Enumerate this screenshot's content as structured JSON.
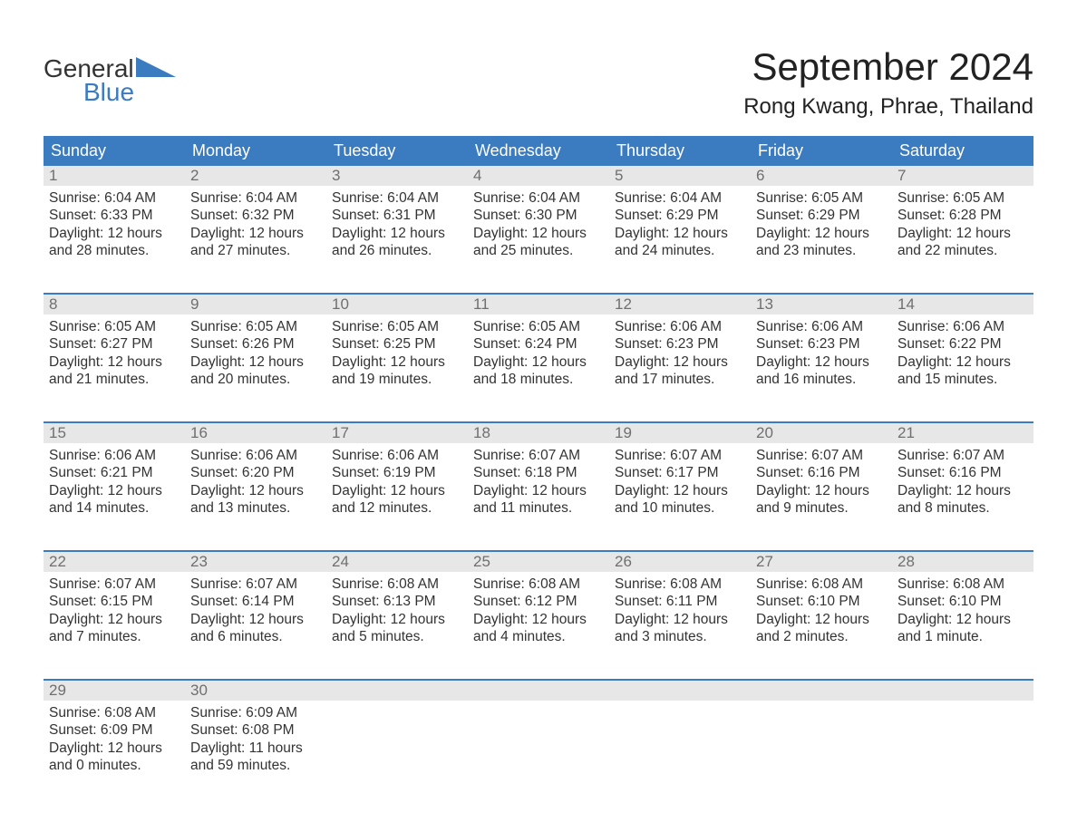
{
  "logo": {
    "line1": "General",
    "line2": "Blue"
  },
  "title": "September 2024",
  "location": "Rong Kwang, Phrae, Thailand",
  "colors": {
    "header_bg": "#3b7bbf",
    "header_text": "#ffffff",
    "daynum_bg": "#e7e7e7",
    "daynum_text": "#6f6f6f",
    "body_text": "#333333",
    "accent": "#3b7bbf",
    "page_bg": "#ffffff"
  },
  "typography": {
    "title_fontsize": 42,
    "location_fontsize": 24,
    "dow_fontsize": 18,
    "daynum_fontsize": 17,
    "body_fontsize": 15.5,
    "font_family": "Arial"
  },
  "dow": [
    "Sunday",
    "Monday",
    "Tuesday",
    "Wednesday",
    "Thursday",
    "Friday",
    "Saturday"
  ],
  "weeks": [
    [
      {
        "n": "1",
        "sunrise": "Sunrise: 6:04 AM",
        "sunset": "Sunset: 6:33 PM",
        "d1": "Daylight: 12 hours",
        "d2": "and 28 minutes."
      },
      {
        "n": "2",
        "sunrise": "Sunrise: 6:04 AM",
        "sunset": "Sunset: 6:32 PM",
        "d1": "Daylight: 12 hours",
        "d2": "and 27 minutes."
      },
      {
        "n": "3",
        "sunrise": "Sunrise: 6:04 AM",
        "sunset": "Sunset: 6:31 PM",
        "d1": "Daylight: 12 hours",
        "d2": "and 26 minutes."
      },
      {
        "n": "4",
        "sunrise": "Sunrise: 6:04 AM",
        "sunset": "Sunset: 6:30 PM",
        "d1": "Daylight: 12 hours",
        "d2": "and 25 minutes."
      },
      {
        "n": "5",
        "sunrise": "Sunrise: 6:04 AM",
        "sunset": "Sunset: 6:29 PM",
        "d1": "Daylight: 12 hours",
        "d2": "and 24 minutes."
      },
      {
        "n": "6",
        "sunrise": "Sunrise: 6:05 AM",
        "sunset": "Sunset: 6:29 PM",
        "d1": "Daylight: 12 hours",
        "d2": "and 23 minutes."
      },
      {
        "n": "7",
        "sunrise": "Sunrise: 6:05 AM",
        "sunset": "Sunset: 6:28 PM",
        "d1": "Daylight: 12 hours",
        "d2": "and 22 minutes."
      }
    ],
    [
      {
        "n": "8",
        "sunrise": "Sunrise: 6:05 AM",
        "sunset": "Sunset: 6:27 PM",
        "d1": "Daylight: 12 hours",
        "d2": "and 21 minutes."
      },
      {
        "n": "9",
        "sunrise": "Sunrise: 6:05 AM",
        "sunset": "Sunset: 6:26 PM",
        "d1": "Daylight: 12 hours",
        "d2": "and 20 minutes."
      },
      {
        "n": "10",
        "sunrise": "Sunrise: 6:05 AM",
        "sunset": "Sunset: 6:25 PM",
        "d1": "Daylight: 12 hours",
        "d2": "and 19 minutes."
      },
      {
        "n": "11",
        "sunrise": "Sunrise: 6:05 AM",
        "sunset": "Sunset: 6:24 PM",
        "d1": "Daylight: 12 hours",
        "d2": "and 18 minutes."
      },
      {
        "n": "12",
        "sunrise": "Sunrise: 6:06 AM",
        "sunset": "Sunset: 6:23 PM",
        "d1": "Daylight: 12 hours",
        "d2": "and 17 minutes."
      },
      {
        "n": "13",
        "sunrise": "Sunrise: 6:06 AM",
        "sunset": "Sunset: 6:23 PM",
        "d1": "Daylight: 12 hours",
        "d2": "and 16 minutes."
      },
      {
        "n": "14",
        "sunrise": "Sunrise: 6:06 AM",
        "sunset": "Sunset: 6:22 PM",
        "d1": "Daylight: 12 hours",
        "d2": "and 15 minutes."
      }
    ],
    [
      {
        "n": "15",
        "sunrise": "Sunrise: 6:06 AM",
        "sunset": "Sunset: 6:21 PM",
        "d1": "Daylight: 12 hours",
        "d2": "and 14 minutes."
      },
      {
        "n": "16",
        "sunrise": "Sunrise: 6:06 AM",
        "sunset": "Sunset: 6:20 PM",
        "d1": "Daylight: 12 hours",
        "d2": "and 13 minutes."
      },
      {
        "n": "17",
        "sunrise": "Sunrise: 6:06 AM",
        "sunset": "Sunset: 6:19 PM",
        "d1": "Daylight: 12 hours",
        "d2": "and 12 minutes."
      },
      {
        "n": "18",
        "sunrise": "Sunrise: 6:07 AM",
        "sunset": "Sunset: 6:18 PM",
        "d1": "Daylight: 12 hours",
        "d2": "and 11 minutes."
      },
      {
        "n": "19",
        "sunrise": "Sunrise: 6:07 AM",
        "sunset": "Sunset: 6:17 PM",
        "d1": "Daylight: 12 hours",
        "d2": "and 10 minutes."
      },
      {
        "n": "20",
        "sunrise": "Sunrise: 6:07 AM",
        "sunset": "Sunset: 6:16 PM",
        "d1": "Daylight: 12 hours",
        "d2": "and 9 minutes."
      },
      {
        "n": "21",
        "sunrise": "Sunrise: 6:07 AM",
        "sunset": "Sunset: 6:16 PM",
        "d1": "Daylight: 12 hours",
        "d2": "and 8 minutes."
      }
    ],
    [
      {
        "n": "22",
        "sunrise": "Sunrise: 6:07 AM",
        "sunset": "Sunset: 6:15 PM",
        "d1": "Daylight: 12 hours",
        "d2": "and 7 minutes."
      },
      {
        "n": "23",
        "sunrise": "Sunrise: 6:07 AM",
        "sunset": "Sunset: 6:14 PM",
        "d1": "Daylight: 12 hours",
        "d2": "and 6 minutes."
      },
      {
        "n": "24",
        "sunrise": "Sunrise: 6:08 AM",
        "sunset": "Sunset: 6:13 PM",
        "d1": "Daylight: 12 hours",
        "d2": "and 5 minutes."
      },
      {
        "n": "25",
        "sunrise": "Sunrise: 6:08 AM",
        "sunset": "Sunset: 6:12 PM",
        "d1": "Daylight: 12 hours",
        "d2": "and 4 minutes."
      },
      {
        "n": "26",
        "sunrise": "Sunrise: 6:08 AM",
        "sunset": "Sunset: 6:11 PM",
        "d1": "Daylight: 12 hours",
        "d2": "and 3 minutes."
      },
      {
        "n": "27",
        "sunrise": "Sunrise: 6:08 AM",
        "sunset": "Sunset: 6:10 PM",
        "d1": "Daylight: 12 hours",
        "d2": "and 2 minutes."
      },
      {
        "n": "28",
        "sunrise": "Sunrise: 6:08 AM",
        "sunset": "Sunset: 6:10 PM",
        "d1": "Daylight: 12 hours",
        "d2": "and 1 minute."
      }
    ],
    [
      {
        "n": "29",
        "sunrise": "Sunrise: 6:08 AM",
        "sunset": "Sunset: 6:09 PM",
        "d1": "Daylight: 12 hours",
        "d2": "and 0 minutes."
      },
      {
        "n": "30",
        "sunrise": "Sunrise: 6:09 AM",
        "sunset": "Sunset: 6:08 PM",
        "d1": "Daylight: 11 hours",
        "d2": "and 59 minutes."
      },
      {
        "empty": true
      },
      {
        "empty": true
      },
      {
        "empty": true
      },
      {
        "empty": true
      },
      {
        "empty": true
      }
    ]
  ]
}
